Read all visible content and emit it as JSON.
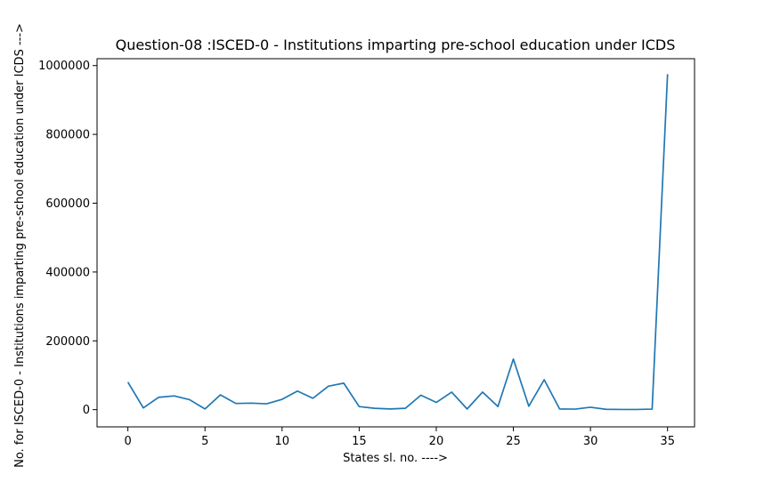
{
  "chart_data": {
    "type": "line",
    "title": "Question-08 :ISCED-0 - Institutions imparting pre-school education under ICDS",
    "xlabel": "States sl. no. ---->",
    "ylabel": "No. for ISCED-0 - Institutions imparting pre-school education under ICDS --->",
    "xlim": [
      -2,
      36.75
    ],
    "ylim": [
      -50000,
      1020000
    ],
    "xticks": [
      0,
      5,
      10,
      15,
      20,
      25,
      30,
      35
    ],
    "yticks": [
      0,
      200000,
      400000,
      600000,
      800000,
      1000000
    ],
    "line_color": "#1f77b4",
    "grid": false,
    "series": [
      {
        "x": [
          0,
          1,
          2,
          3,
          4,
          5,
          6,
          7,
          8,
          9,
          10,
          11,
          12,
          13,
          14,
          15,
          16,
          17,
          18,
          19,
          20,
          21,
          22,
          23,
          24,
          25,
          26,
          27,
          28,
          29,
          30,
          31,
          32,
          33,
          34,
          35
        ],
        "values": [
          80000,
          5000,
          36000,
          40000,
          29000,
          2000,
          43000,
          18000,
          19000,
          17000,
          30000,
          54000,
          33000,
          68000,
          77000,
          9000,
          4000,
          2000,
          4000,
          42000,
          21000,
          51000,
          2000,
          51000,
          9000,
          147000,
          10000,
          87000,
          2000,
          1500,
          7000,
          1000,
          500,
          500,
          1500,
          975000
        ]
      }
    ]
  }
}
